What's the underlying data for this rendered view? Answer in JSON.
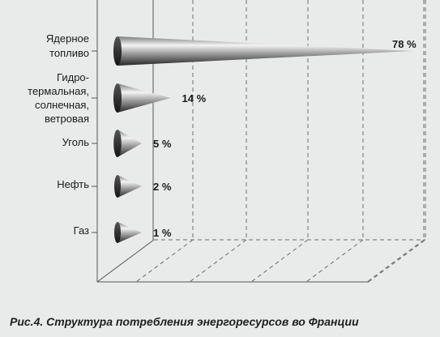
{
  "chart_data": {
    "type": "bar",
    "title": "",
    "caption": "Рис.4. Структура потребления энергоресурсов во Франции",
    "xlabel": "",
    "ylabel": "",
    "orientation": "horizontal",
    "mark_shape": "cone",
    "categories": [
      [
        "Ядерное",
        "топливо"
      ],
      [
        "Гидро-",
        "термальная,",
        "солнечная,",
        "ветровая"
      ],
      [
        "Уголь"
      ],
      [
        "Нефть"
      ],
      [
        "Газ"
      ]
    ],
    "values": [
      78,
      14,
      5,
      2,
      1
    ],
    "value_labels": [
      "78 %",
      "14 %",
      "5 %",
      "2 %",
      "1 %"
    ],
    "xlim": [
      0,
      78
    ],
    "grid": true,
    "legend": "none",
    "colors": {
      "cone_light": "#f4f4f4",
      "cone_dark": "#262626",
      "background": "#e9ebea"
    }
  }
}
